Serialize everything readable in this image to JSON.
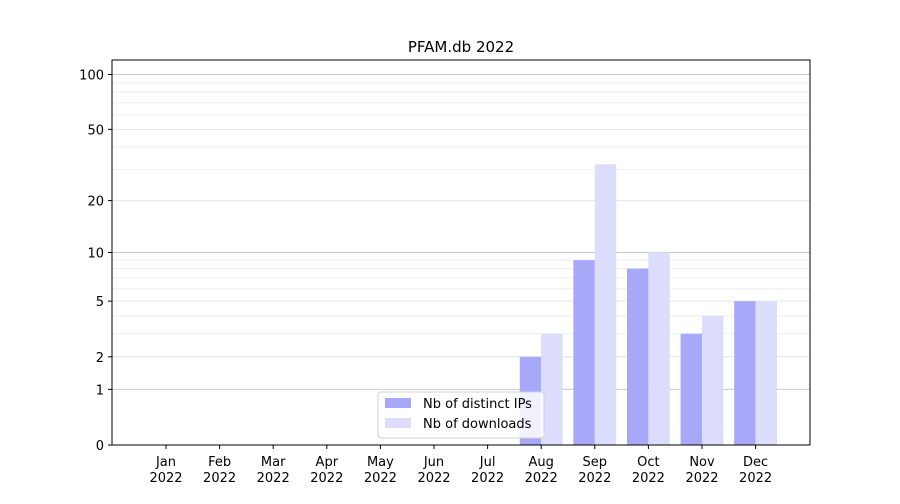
{
  "chart_data": {
    "type": "bar",
    "title": "PFAM.db 2022",
    "xlabel": "",
    "ylabel": "",
    "y_scale": "log(1+y)",
    "ylim": [
      0,
      120
    ],
    "y_ticks": [
      0,
      1,
      2,
      5,
      10,
      20,
      50,
      100
    ],
    "grid": "horizontal",
    "legend_position": "bottom-center",
    "categories": [
      [
        "Jan",
        "2022"
      ],
      [
        "Feb",
        "2022"
      ],
      [
        "Mar",
        "2022"
      ],
      [
        "Apr",
        "2022"
      ],
      [
        "May",
        "2022"
      ],
      [
        "Jun",
        "2022"
      ],
      [
        "Jul",
        "2022"
      ],
      [
        "Aug",
        "2022"
      ],
      [
        "Sep",
        "2022"
      ],
      [
        "Oct",
        "2022"
      ],
      [
        "Nov",
        "2022"
      ],
      [
        "Dec",
        "2022"
      ]
    ],
    "series": [
      {
        "name": "Nb of distinct IPs",
        "color": "#a8a8f8",
        "values": [
          0,
          0,
          0,
          0,
          0,
          0,
          0,
          2,
          9,
          8,
          3,
          5
        ]
      },
      {
        "name": "Nb of downloads",
        "color": "#dcdcfc",
        "values": [
          0,
          0,
          0,
          0,
          0,
          0,
          0,
          3,
          32,
          10,
          4,
          5
        ]
      }
    ]
  }
}
